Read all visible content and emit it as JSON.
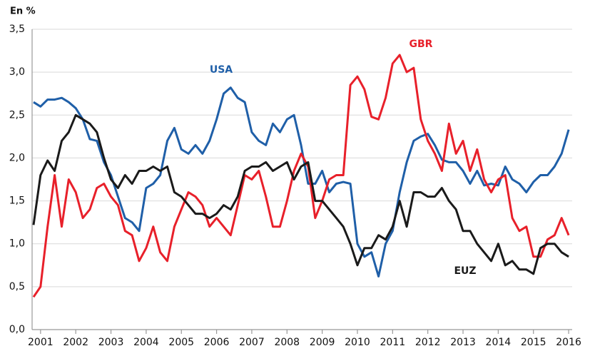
{
  "chart_data": {
    "type": "line",
    "title": "En %",
    "x": [
      2000.8,
      2001.0,
      2001.2,
      2001.4,
      2001.6,
      2001.8,
      2002.0,
      2002.2,
      2002.4,
      2002.6,
      2002.8,
      2003.0,
      2003.2,
      2003.4,
      2003.6,
      2003.8,
      2004.0,
      2004.2,
      2004.4,
      2004.6,
      2004.8,
      2005.0,
      2005.2,
      2005.4,
      2005.6,
      2005.8,
      2006.0,
      2006.2,
      2006.4,
      2006.6,
      2006.8,
      2007.0,
      2007.2,
      2007.4,
      2007.6,
      2007.8,
      2008.0,
      2008.2,
      2008.4,
      2008.6,
      2008.8,
      2009.0,
      2009.2,
      2009.4,
      2009.6,
      2009.8,
      2010.0,
      2010.2,
      2010.4,
      2010.6,
      2010.8,
      2011.0,
      2011.2,
      2011.4,
      2011.6,
      2011.8,
      2012.0,
      2012.2,
      2012.4,
      2012.6,
      2012.8,
      2013.0,
      2013.2,
      2013.4,
      2013.6,
      2013.8,
      2014.0,
      2014.2,
      2014.4,
      2014.6,
      2014.8,
      2015.0,
      2015.2,
      2015.4,
      2015.6,
      2015.8,
      2016.0
    ],
    "series": [
      {
        "name": "USA",
        "color": "#1f5fa8",
        "values": [
          2.65,
          2.6,
          2.68,
          2.68,
          2.7,
          2.65,
          2.58,
          2.45,
          2.22,
          2.2,
          1.95,
          1.8,
          1.55,
          1.3,
          1.25,
          1.15,
          1.65,
          1.7,
          1.8,
          2.2,
          2.35,
          2.1,
          2.05,
          2.15,
          2.05,
          2.2,
          2.45,
          2.75,
          2.82,
          2.7,
          2.65,
          2.3,
          2.2,
          2.15,
          2.4,
          2.3,
          2.45,
          2.5,
          2.15,
          1.7,
          1.7,
          1.85,
          1.6,
          1.7,
          1.72,
          1.7,
          1.0,
          0.85,
          0.9,
          0.62,
          1.0,
          1.15,
          1.6,
          1.95,
          2.2,
          2.25,
          2.28,
          2.15,
          1.98,
          1.95,
          1.95,
          1.85,
          1.7,
          1.85,
          1.68,
          1.7,
          1.68,
          1.9,
          1.75,
          1.7,
          1.6,
          1.72,
          1.8,
          1.8,
          1.9,
          2.05,
          2.33
        ]
      },
      {
        "name": "GBR",
        "color": "#e8202a",
        "values": [
          0.38,
          0.5,
          1.2,
          1.8,
          1.2,
          1.75,
          1.6,
          1.3,
          1.4,
          1.65,
          1.7,
          1.55,
          1.45,
          1.15,
          1.1,
          0.8,
          0.95,
          1.2,
          0.9,
          0.8,
          1.2,
          1.4,
          1.6,
          1.55,
          1.45,
          1.2,
          1.3,
          1.2,
          1.1,
          1.45,
          1.8,
          1.75,
          1.85,
          1.55,
          1.2,
          1.2,
          1.5,
          1.85,
          2.05,
          1.9,
          1.3,
          1.5,
          1.75,
          1.8,
          1.8,
          2.85,
          2.95,
          2.8,
          2.48,
          2.45,
          2.7,
          3.1,
          3.2,
          3.0,
          3.05,
          2.45,
          2.2,
          2.05,
          1.85,
          2.4,
          2.05,
          2.2,
          1.85,
          2.1,
          1.75,
          1.6,
          1.75,
          1.8,
          1.3,
          1.15,
          1.2,
          0.85,
          0.85,
          1.05,
          1.1,
          1.3,
          1.1
        ]
      },
      {
        "name": "EUZ",
        "color": "#1a1a1a",
        "values": [
          1.22,
          1.8,
          1.97,
          1.85,
          2.2,
          2.3,
          2.5,
          2.45,
          2.4,
          2.3,
          2.0,
          1.75,
          1.65,
          1.8,
          1.7,
          1.85,
          1.85,
          1.9,
          1.85,
          1.9,
          1.6,
          1.55,
          1.45,
          1.35,
          1.35,
          1.3,
          1.35,
          1.45,
          1.4,
          1.55,
          1.85,
          1.9,
          1.9,
          1.95,
          1.85,
          1.9,
          1.95,
          1.75,
          1.9,
          1.95,
          1.5,
          1.5,
          1.4,
          1.3,
          1.2,
          1.0,
          0.75,
          0.95,
          0.95,
          1.1,
          1.05,
          1.2,
          1.5,
          1.2,
          1.6,
          1.6,
          1.55,
          1.55,
          1.65,
          1.5,
          1.4,
          1.15,
          1.15,
          1.0,
          0.9,
          0.8,
          1.0,
          0.75,
          0.8,
          0.7,
          0.7,
          0.65,
          0.95,
          1.0,
          1.0,
          0.9,
          0.85
        ]
      }
    ],
    "xlim": [
      2000.76,
      2016.1
    ],
    "xticks": [
      2001,
      2002,
      2003,
      2004,
      2005,
      2006,
      2007,
      2008,
      2009,
      2010,
      2011,
      2012,
      2013,
      2014,
      2015,
      2016
    ],
    "ylim": [
      0,
      3.5
    ],
    "yticks": [
      {
        "value": 0,
        "label": "0,0"
      },
      {
        "value": 0.5,
        "label": "0,5"
      },
      {
        "value": 1,
        "label": "1,0"
      },
      {
        "value": 1.5,
        "label": "1,5"
      },
      {
        "value": 2,
        "label": "2,0"
      },
      {
        "value": 2.5,
        "label": "2,5"
      },
      {
        "value": 3,
        "label": "3,0"
      },
      {
        "value": 3.5,
        "label": "3,5"
      }
    ],
    "grid": true
  }
}
